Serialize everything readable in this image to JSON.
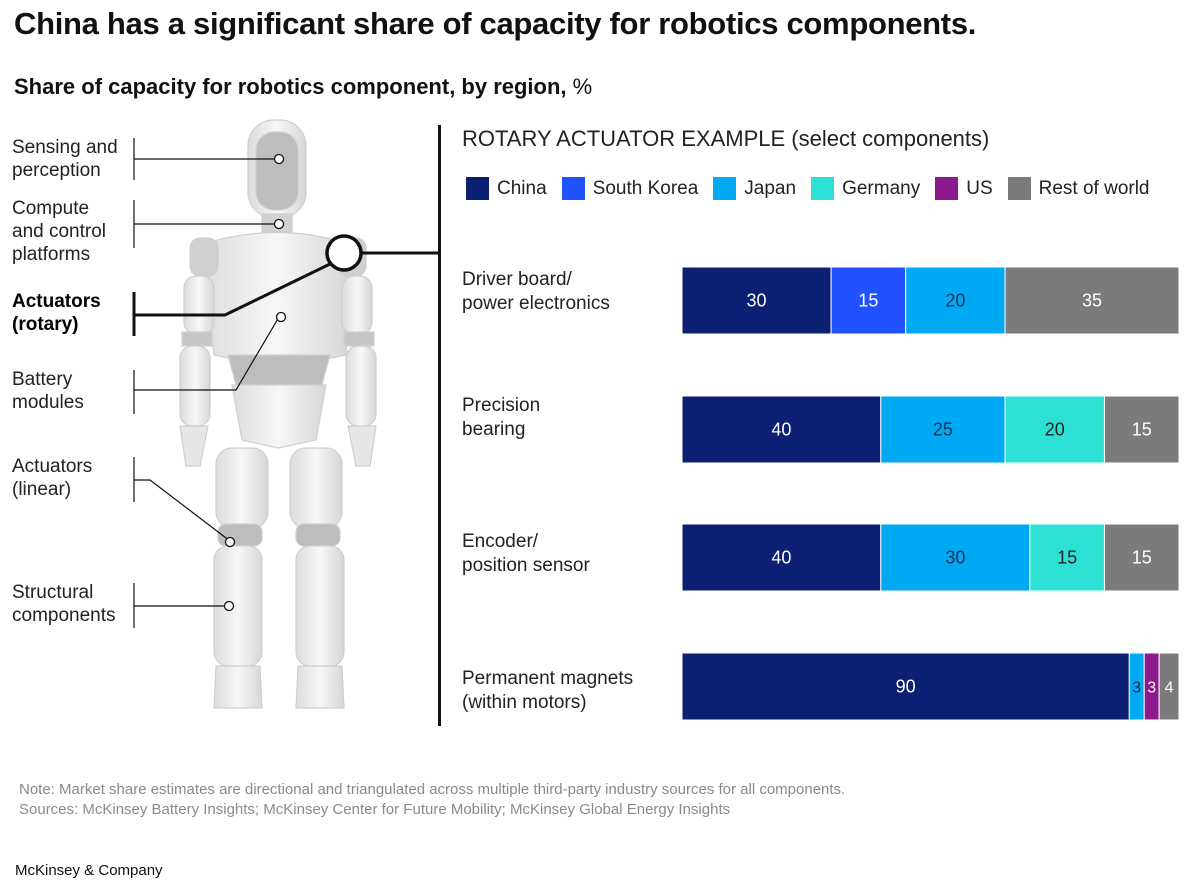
{
  "title": "China has a significant share of capacity for robotics components.",
  "subtitle": {
    "bold": "Share of capacity for robotics component, by region,",
    "unit": "%"
  },
  "robot": {
    "labels": [
      {
        "text": "Sensing and\nperception",
        "active": false
      },
      {
        "text": "Compute\nand control\nplatforms",
        "active": false
      },
      {
        "text": "Actuators\n(rotary)",
        "active": true
      },
      {
        "text": "Battery\nmodules",
        "active": false
      },
      {
        "text": "Actuators\n(linear)",
        "active": false
      },
      {
        "text": "Structural\ncomponents",
        "active": false
      }
    ]
  },
  "chart_data": {
    "type": "bar",
    "orientation": "horizontal",
    "stacked": true,
    "title": "ROTARY ACTUATOR EXAMPLE (select components)",
    "categories": [
      "Driver board/\npower electronics",
      "Precision\nbearing",
      "Encoder/\nposition sensor",
      "Permanent magnets\n(within motors)"
    ],
    "series": [
      {
        "name": "China",
        "color": "#0b1f73",
        "values": [
          30,
          40,
          40,
          90
        ]
      },
      {
        "name": "South Korea",
        "color": "#2251ff",
        "values": [
          15,
          0,
          0,
          0
        ]
      },
      {
        "name": "Japan",
        "color": "#00a9f4",
        "values": [
          20,
          25,
          30,
          3
        ]
      },
      {
        "name": "Germany",
        "color": "#2ce0d4",
        "values": [
          0,
          20,
          15,
          0
        ]
      },
      {
        "name": "US",
        "color": "#8c1a8c",
        "values": [
          0,
          0,
          0,
          3
        ]
      },
      {
        "name": "Rest of world",
        "color": "#7b7b7b",
        "values": [
          35,
          15,
          15,
          4
        ]
      }
    ],
    "xlim": [
      0,
      100
    ],
    "legend_position": "top",
    "grid": false
  },
  "footer": {
    "note": "Note: Market share estimates are directional and triangulated across multiple third-party industry sources for all components.",
    "sources": "Sources: McKinsey Battery Insights; McKinsey Center for Future Mobility; McKinsey Global Energy Insights",
    "brand": "McKinsey & Company"
  }
}
